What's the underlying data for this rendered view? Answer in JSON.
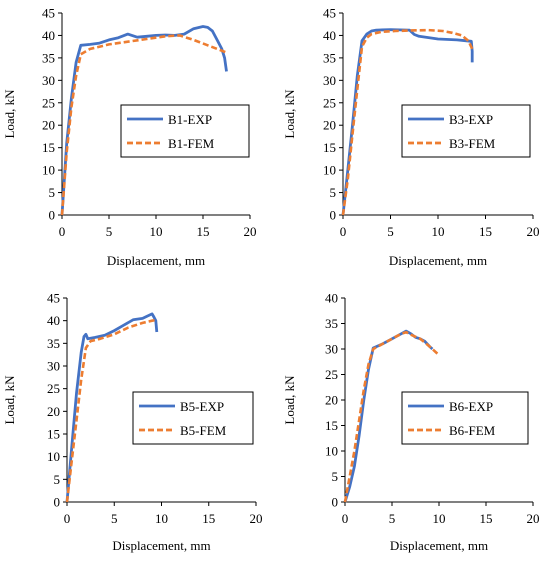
{
  "chart_data": [
    {
      "type": "line",
      "xlabel": "Displacement, mm",
      "ylabel": "Load, kN",
      "xlim": [
        0,
        20
      ],
      "ylim": [
        0,
        45
      ],
      "xticks": [
        "0",
        "5",
        "10",
        "15",
        "20"
      ],
      "yticks": [
        "0",
        "5",
        "10",
        "15",
        "20",
        "25",
        "30",
        "35",
        "40",
        "45"
      ],
      "grid": false,
      "legend": "right-middle",
      "series": [
        {
          "name": "B1-EXP",
          "color": "#4472C4",
          "style": "solid",
          "x": [
            0,
            0.5,
            1.0,
            1.5,
            2.0,
            3.0,
            4.0,
            5.0,
            6.0,
            7.0,
            8.0,
            9.0,
            10.0,
            11.0,
            12.0,
            13.0,
            14.0,
            15.0,
            15.5,
            16.0,
            16.5,
            17.0,
            17.3,
            17.5
          ],
          "y": [
            0,
            16,
            26,
            34,
            37.8,
            38.0,
            38.3,
            39.0,
            39.5,
            40.3,
            39.6,
            39.8,
            40.0,
            40.1,
            40.0,
            40.3,
            41.5,
            42.0,
            41.8,
            41.0,
            39.0,
            37.0,
            35.0,
            32.0
          ]
        },
        {
          "name": "B1-FEM",
          "color": "#ED7D31",
          "style": "dashed",
          "x": [
            0,
            0.5,
            1.0,
            1.5,
            2.0,
            3.0,
            5.0,
            7.0,
            9.0,
            11.0,
            12.5,
            14.0,
            15.5,
            16.5,
            17.5
          ],
          "y": [
            0,
            14,
            24,
            31,
            35.8,
            37.0,
            38.0,
            38.6,
            39.2,
            39.8,
            40.0,
            39.0,
            37.8,
            37.0,
            36.2
          ]
        }
      ]
    },
    {
      "type": "line",
      "xlabel": "Displacement, mm",
      "ylabel": "Load, kN",
      "xlim": [
        0,
        20
      ],
      "ylim": [
        0,
        45
      ],
      "xticks": [
        "0",
        "5",
        "10",
        "15",
        "20"
      ],
      "yticks": [
        "0",
        "5",
        "10",
        "15",
        "20",
        "25",
        "30",
        "35",
        "40",
        "45"
      ],
      "grid": false,
      "legend": "right-middle",
      "series": [
        {
          "name": "B3-EXP",
          "color": "#4472C4",
          "style": "solid",
          "x": [
            0,
            0.5,
            1.0,
            1.5,
            2.0,
            2.5,
            3.0,
            3.5,
            5.0,
            7.0,
            7.5,
            8.0,
            10.0,
            12.0,
            13.0,
            13.5,
            13.6,
            13.6
          ],
          "y": [
            0,
            10,
            20,
            31,
            38.8,
            40.3,
            41.0,
            41.2,
            41.3,
            41.2,
            40.2,
            39.8,
            39.2,
            39.0,
            38.8,
            38.7,
            36.5,
            34.0
          ]
        },
        {
          "name": "B3-FEM",
          "color": "#ED7D31",
          "style": "dashed",
          "x": [
            0,
            0.5,
            1.0,
            1.5,
            2.0,
            2.5,
            3.0,
            4.0,
            5.5,
            7.0,
            9.0,
            10.5,
            11.5,
            12.5,
            13.2,
            13.6
          ],
          "y": [
            0,
            8,
            18,
            28,
            37.5,
            39.5,
            40.3,
            40.8,
            41.0,
            41.1,
            41.2,
            41.0,
            40.6,
            40.0,
            38.8,
            37.0
          ]
        }
      ]
    },
    {
      "type": "line",
      "xlabel": "Displacement, mm",
      "ylabel": "Load, kN",
      "xlim": [
        0,
        20
      ],
      "ylim": [
        0,
        45
      ],
      "xticks": [
        "0",
        "5",
        "10",
        "15",
        "20"
      ],
      "yticks": [
        "0",
        "5",
        "10",
        "15",
        "20",
        "25",
        "30",
        "35",
        "40",
        "45"
      ],
      "grid": false,
      "legend": "right-middle",
      "series": [
        {
          "name": "B5-EXP",
          "color": "#4472C4",
          "style": "solid",
          "x": [
            0,
            0.5,
            1.0,
            1.5,
            1.8,
            2.0,
            2.2,
            3.0,
            4.0,
            5.0,
            6.0,
            7.0,
            8.0,
            8.5,
            9.0,
            9.2,
            9.4,
            9.5
          ],
          "y": [
            0,
            12,
            24,
            33,
            36.5,
            37.0,
            36.0,
            36.3,
            36.8,
            37.8,
            39.0,
            40.2,
            40.5,
            41.0,
            41.5,
            40.8,
            40.0,
            37.5
          ]
        },
        {
          "name": "B5-FEM",
          "color": "#ED7D31",
          "style": "dashed",
          "x": [
            0,
            0.5,
            1.0,
            1.5,
            2.0,
            2.5,
            3.5,
            5.0,
            6.5,
            8.0,
            9.0,
            9.5
          ],
          "y": [
            0,
            9,
            18,
            27,
            34,
            35.5,
            36.0,
            37.0,
            38.5,
            39.5,
            40.0,
            40.2
          ]
        }
      ]
    },
    {
      "type": "line",
      "xlabel": "Displacement, mm",
      "ylabel": "Load, kN",
      "xlim": [
        0,
        20
      ],
      "ylim": [
        0,
        40
      ],
      "xticks": [
        "0",
        "5",
        "10",
        "15",
        "20"
      ],
      "yticks": [
        "0",
        "5",
        "10",
        "15",
        "20",
        "25",
        "30",
        "35",
        "40"
      ],
      "grid": false,
      "legend": "right-middle",
      "series": [
        {
          "name": "B6-EXP",
          "color": "#4472C4",
          "style": "solid",
          "x": [
            0,
            0.5,
            1.0,
            1.5,
            2.0,
            2.5,
            3.0,
            4.0,
            5.0,
            6.0,
            6.5,
            7.0,
            7.5,
            8.0,
            8.5,
            9.0,
            9.3
          ],
          "y": [
            0,
            3,
            7,
            13,
            20,
            26,
            30.2,
            31.0,
            32.0,
            33.0,
            33.5,
            33.0,
            32.3,
            32.0,
            31.5,
            30.5,
            30.0
          ]
        },
        {
          "name": "B6-FEM",
          "color": "#ED7D31",
          "style": "dashed",
          "x": [
            0,
            0.5,
            1.0,
            1.5,
            2.0,
            2.5,
            3.0,
            4.0,
            5.0,
            6.0,
            6.5,
            7.0,
            8.0,
            9.0,
            10.0
          ],
          "y": [
            0,
            5,
            10,
            16,
            22,
            27,
            30.0,
            31.0,
            32.0,
            33.0,
            33.3,
            32.8,
            32.0,
            30.5,
            28.8
          ]
        }
      ]
    }
  ]
}
